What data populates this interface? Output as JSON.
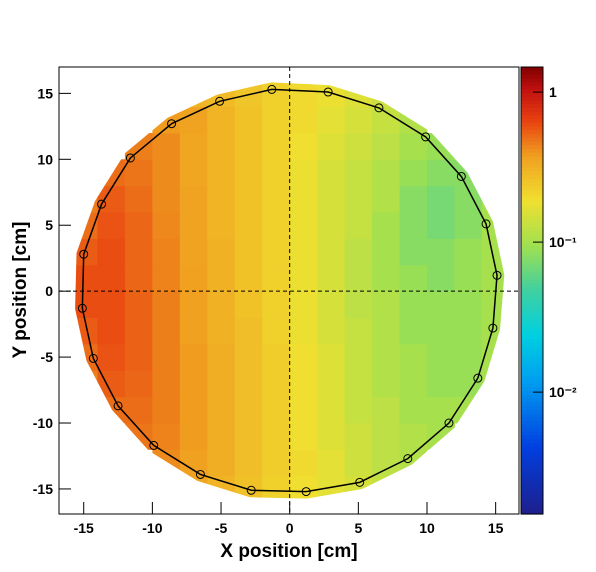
{
  "chart_data": {
    "type": "heatmap",
    "xlabel": "X position [cm]",
    "ylabel": "Y position [cm]",
    "xlim": [
      -16.8,
      16.7
    ],
    "ylim": [
      -16.9,
      17
    ],
    "xticks": [
      -15,
      -10,
      -5,
      0,
      5,
      10,
      15
    ],
    "yticks": [
      -15,
      -10,
      -5,
      0,
      5,
      10,
      15
    ],
    "zlim": [
      0.00154,
      1.47
    ],
    "zscale": "log",
    "zticks": [
      {
        "value": 0.01,
        "label": "10⁻²"
      },
      {
        "value": 0.1,
        "label": "10⁻¹"
      },
      1
    ],
    "xbins": [
      -16,
      -14,
      -12,
      -10,
      -8,
      -6,
      -4,
      -2,
      0,
      2,
      4,
      6,
      8,
      10,
      12,
      14,
      16
    ],
    "ybins": [
      -16,
      -14,
      -12,
      -10,
      -8,
      -6,
      -4,
      -2,
      0,
      2,
      4,
      6,
      8,
      10,
      12,
      14,
      16
    ],
    "z": [
      [
        null,
        null,
        null,
        null,
        0.35,
        0.3,
        0.26,
        0.22,
        0.19,
        0.17,
        0.15,
        0.13,
        null,
        null,
        null,
        null
      ],
      [
        null,
        null,
        null,
        0.42,
        0.37,
        0.32,
        0.27,
        0.23,
        0.2,
        0.17,
        0.14,
        0.12,
        0.11,
        null,
        null,
        null
      ],
      [
        null,
        null,
        0.48,
        0.44,
        0.38,
        0.32,
        0.27,
        0.23,
        0.19,
        0.16,
        0.14,
        0.12,
        0.11,
        0.1,
        null,
        null
      ],
      [
        null,
        0.5,
        0.5,
        0.45,
        0.38,
        0.32,
        0.27,
        0.23,
        0.19,
        0.16,
        0.13,
        0.12,
        0.1,
        0.1,
        0.1,
        null
      ],
      [
        0.45,
        0.55,
        0.52,
        0.45,
        0.38,
        0.32,
        0.27,
        0.23,
        0.19,
        0.16,
        0.13,
        0.11,
        0.1,
        0.09,
        0.09,
        0.1
      ],
      [
        0.5,
        0.58,
        0.53,
        0.45,
        0.38,
        0.32,
        0.27,
        0.23,
        0.19,
        0.16,
        0.13,
        0.11,
        0.1,
        0.09,
        0.09,
        0.1
      ],
      [
        0.55,
        0.6,
        0.53,
        0.45,
        0.37,
        0.31,
        0.27,
        0.22,
        0.18,
        0.15,
        0.13,
        0.11,
        0.09,
        0.09,
        0.09,
        0.1
      ],
      [
        0.6,
        0.6,
        0.53,
        0.45,
        0.37,
        0.31,
        0.26,
        0.22,
        0.18,
        0.15,
        0.12,
        0.11,
        0.09,
        0.09,
        0.09,
        0.1
      ],
      [
        0.6,
        0.6,
        0.52,
        0.44,
        0.37,
        0.31,
        0.26,
        0.22,
        0.18,
        0.15,
        0.12,
        0.1,
        0.09,
        0.08,
        0.09,
        0.1
      ],
      [
        0.55,
        0.6,
        0.52,
        0.44,
        0.36,
        0.31,
        0.26,
        0.22,
        0.18,
        0.15,
        0.12,
        0.1,
        0.08,
        0.08,
        0.09,
        0.1
      ],
      [
        0.5,
        0.58,
        0.52,
        0.43,
        0.36,
        0.3,
        0.26,
        0.22,
        0.18,
        0.15,
        0.13,
        0.1,
        0.08,
        0.07,
        0.08,
        0.1
      ],
      [
        0.45,
        0.55,
        0.5,
        0.42,
        0.36,
        0.3,
        0.26,
        0.22,
        0.18,
        0.15,
        0.13,
        0.11,
        0.08,
        0.07,
        0.08,
        0.1
      ],
      [
        null,
        0.5,
        0.48,
        0.42,
        0.35,
        0.3,
        0.26,
        0.22,
        0.18,
        0.15,
        0.13,
        0.11,
        0.09,
        0.08,
        0.08,
        null
      ],
      [
        null,
        null,
        0.45,
        0.42,
        0.35,
        0.3,
        0.26,
        0.22,
        0.19,
        0.16,
        0.14,
        0.12,
        0.1,
        0.09,
        null,
        null
      ],
      [
        null,
        null,
        null,
        0.38,
        0.36,
        0.3,
        0.26,
        0.22,
        0.2,
        0.17,
        0.15,
        0.13,
        0.11,
        null,
        null,
        null
      ],
      [
        null,
        null,
        null,
        null,
        0.3,
        0.28,
        0.25,
        0.22,
        0.2,
        0.18,
        0.16,
        0.14,
        null,
        null,
        null,
        null
      ]
    ],
    "markers": {
      "x": [
        -1.3,
        2.8,
        6.5,
        9.9,
        12.5,
        14.3,
        15.1,
        14.8,
        13.7,
        11.6,
        8.6,
        5.1,
        1.2,
        -2.8,
        -6.5,
        -9.9,
        -12.5,
        -14.3,
        -15.1,
        -15.0,
        -13.7,
        -11.6,
        -8.6,
        -5.1
      ],
      "y": [
        15.3,
        15.1,
        13.9,
        11.7,
        8.7,
        5.1,
        1.2,
        -2.8,
        -6.6,
        -10.0,
        -12.7,
        -14.5,
        -15.2,
        -15.1,
        -13.9,
        -11.7,
        -8.7,
        -5.1,
        -1.3,
        2.8,
        6.6,
        10.1,
        12.7,
        14.4
      ]
    }
  }
}
